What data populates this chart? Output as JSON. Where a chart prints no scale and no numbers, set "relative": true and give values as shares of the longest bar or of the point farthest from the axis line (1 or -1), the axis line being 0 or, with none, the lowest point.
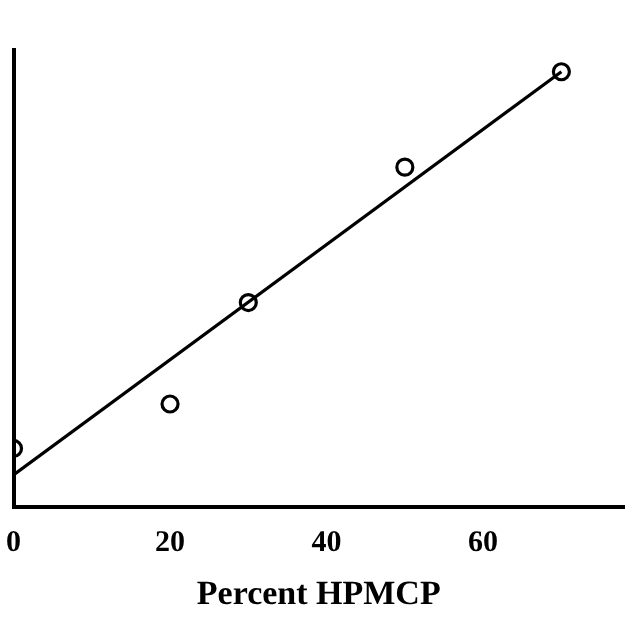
{
  "chart_data": {
    "type": "scatter",
    "xlabel": "Percent HPMCP",
    "relative": true,
    "xlim": [
      0,
      78
    ],
    "xticks": [
      0,
      20,
      40,
      60
    ],
    "grid": false,
    "legend": false,
    "tick_labels": "x",
    "series": [
      {
        "marker": "circle",
        "color": "#000000",
        "x": [
          0,
          20,
          30,
          50,
          70
        ],
        "values": [
          0.135,
          0.237,
          0.47,
          0.781,
          1
        ]
      },
      {
        "type": "line",
        "color": "#000000",
        "x": [
          0,
          70
        ],
        "values": [
          0.074,
          1
        ]
      }
    ]
  }
}
